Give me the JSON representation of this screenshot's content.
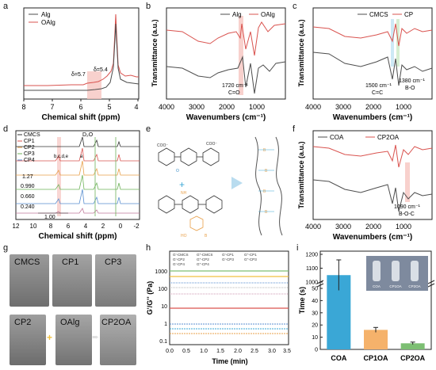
{
  "panels": {
    "a": {
      "label": "a",
      "xlabel": "Chemical shift (ppm)",
      "xticks": [
        "8",
        "7",
        "6",
        "5",
        "4"
      ],
      "legend": [
        "Alg",
        "OAlg"
      ],
      "annotations": [
        "δ=5.7",
        "δ=5.4"
      ],
      "colors": {
        "Alg": "#4d4d4d",
        "OAlg": "#d9534f"
      }
    },
    "b": {
      "label": "b",
      "xlabel": "Wavenumbers (cm⁻¹)",
      "ylabel": "Transmittance (a.u.)",
      "xticks": [
        "4000",
        "3000",
        "2000",
        "1000"
      ],
      "legend": [
        "Alg",
        "OAlg"
      ],
      "annotations": [
        "1720 cm⁻¹",
        "C=O"
      ]
    },
    "c": {
      "label": "c",
      "xlabel": "Wavenumbers (cm⁻¹)",
      "ylabel": "Transmittance (a.u.)",
      "xticks": [
        "4000",
        "3000",
        "2000",
        "1000"
      ],
      "legend": [
        "CMCS",
        "CP"
      ],
      "annotations": [
        "1500 cm⁻¹",
        "C=C",
        "1380 cm⁻¹",
        "B-O"
      ]
    },
    "d": {
      "label": "d",
      "xlabel": "Chemical shift (ppm)",
      "xticks": [
        "12",
        "10",
        "8",
        "6",
        "4",
        "2",
        "0",
        "-2"
      ],
      "legend": [
        "CMCS",
        "CP1",
        "CP2",
        "CP3",
        "CP4"
      ],
      "legend_colors": [
        "#333333",
        "#d9534f",
        "#e8a04a",
        "#6fb35a",
        "#5a8fd0"
      ],
      "values": [
        "1.27",
        "0.990",
        "0.660",
        "0.240",
        "1.00"
      ],
      "annotations": [
        "D₂O",
        "b,c,d,e",
        "a"
      ]
    },
    "e": {
      "label": "e"
    },
    "f": {
      "label": "f",
      "xlabel": "Wavenumbers (cm⁻¹)",
      "ylabel": "Transmittance (a.u.)",
      "xticks": [
        "4000",
        "3000",
        "2000",
        "1000"
      ],
      "legend": [
        "COA",
        "CP2OA"
      ],
      "annotations": [
        "1090 cm⁻¹",
        "B-O-C"
      ]
    },
    "g": {
      "label": "g",
      "photo_labels": [
        "CMCS",
        "CP1",
        "CP3",
        "CP2",
        "OAlg",
        "CP2OA"
      ]
    },
    "h": {
      "label": "h",
      "xlabel": "Time (min)",
      "ylabel": "G'/G'' (Pa)",
      "xticks": [
        "0.0",
        "0.5",
        "1.0",
        "1.5",
        "2.0",
        "2.5",
        "3.0",
        "3.5"
      ],
      "yticks": [
        "1000",
        "100",
        "10",
        "1",
        "0.1"
      ],
      "legend": [
        "G'-CMCS",
        "G''-CMCS",
        "G'-CP1",
        "G''-CP1",
        "G'-CP2",
        "G''-CP2",
        "G'-CP3",
        "G''-CP3",
        "G'-CP4",
        "G''-CP4"
      ]
    },
    "i": {
      "label": "i",
      "ylabel": "Time (s)",
      "yticks": [
        "1200",
        "1100",
        "1000",
        "50",
        "40",
        "30",
        "20",
        "10",
        "0"
      ],
      "categories": [
        "COA",
        "CP1OA",
        "CP2OA"
      ],
      "inset_labels": [
        "COA",
        "CP1OA",
        "CP2OA"
      ],
      "colors": [
        "#3aa7d6",
        "#f5b26b",
        "#7dbf73"
      ]
    }
  },
  "chart_data": [
    {
      "type": "bar",
      "panel": "i",
      "categories": [
        "COA",
        "CP1OA",
        "CP2OA"
      ],
      "values": [
        1050,
        16,
        5
      ],
      "errors": [
        110,
        2,
        1
      ],
      "ylabel": "Time (s)",
      "ylim": [
        0,
        1200
      ],
      "axis_break": [
        50,
        1000
      ]
    }
  ]
}
